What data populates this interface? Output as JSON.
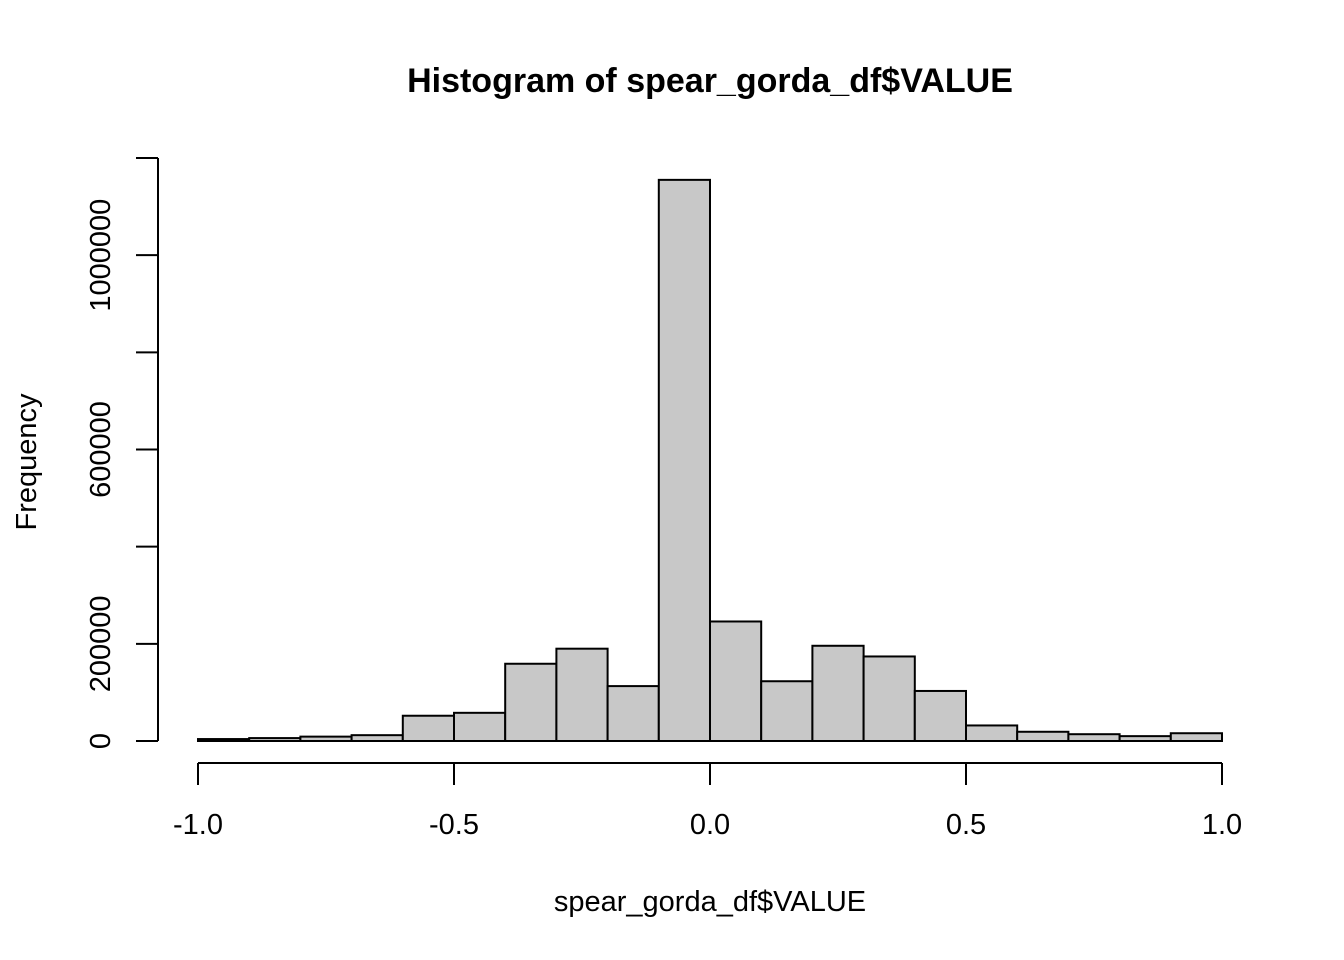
{
  "chart_data": {
    "type": "bar",
    "title": "Histogram of spear_gorda_df$VALUE",
    "xlabel": "spear_gorda_df$VALUE",
    "ylabel": "Frequency",
    "bin_edges": [
      -1.0,
      -0.9,
      -0.8,
      -0.7,
      -0.6,
      -0.5,
      -0.4,
      -0.3,
      -0.2,
      -0.1,
      0.0,
      0.1,
      0.2,
      0.3,
      0.4,
      0.5,
      0.6,
      0.7,
      0.8,
      0.9,
      1.0
    ],
    "values": [
      4000,
      6000,
      9000,
      12000,
      52000,
      58000,
      159000,
      190000,
      113000,
      1155000,
      246000,
      123000,
      196000,
      174000,
      103000,
      32000,
      19000,
      14000,
      10000,
      16000
    ],
    "xlim": [
      -1.0,
      1.0
    ],
    "ylim": [
      0,
      1200000
    ],
    "x_ticks": [
      -1.0,
      -0.5,
      0.0,
      0.5,
      1.0
    ],
    "x_tick_labels": [
      "-1.0",
      "-0.5",
      "0.0",
      "0.5",
      "1.0"
    ],
    "y_ticks": [
      0,
      200000,
      400000,
      600000,
      800000,
      1000000,
      1200000
    ],
    "y_tick_labels": [
      "0",
      "200000",
      "",
      "600000",
      "",
      "1000000",
      ""
    ],
    "bar_color": "#c8c8c8",
    "grid": false
  }
}
